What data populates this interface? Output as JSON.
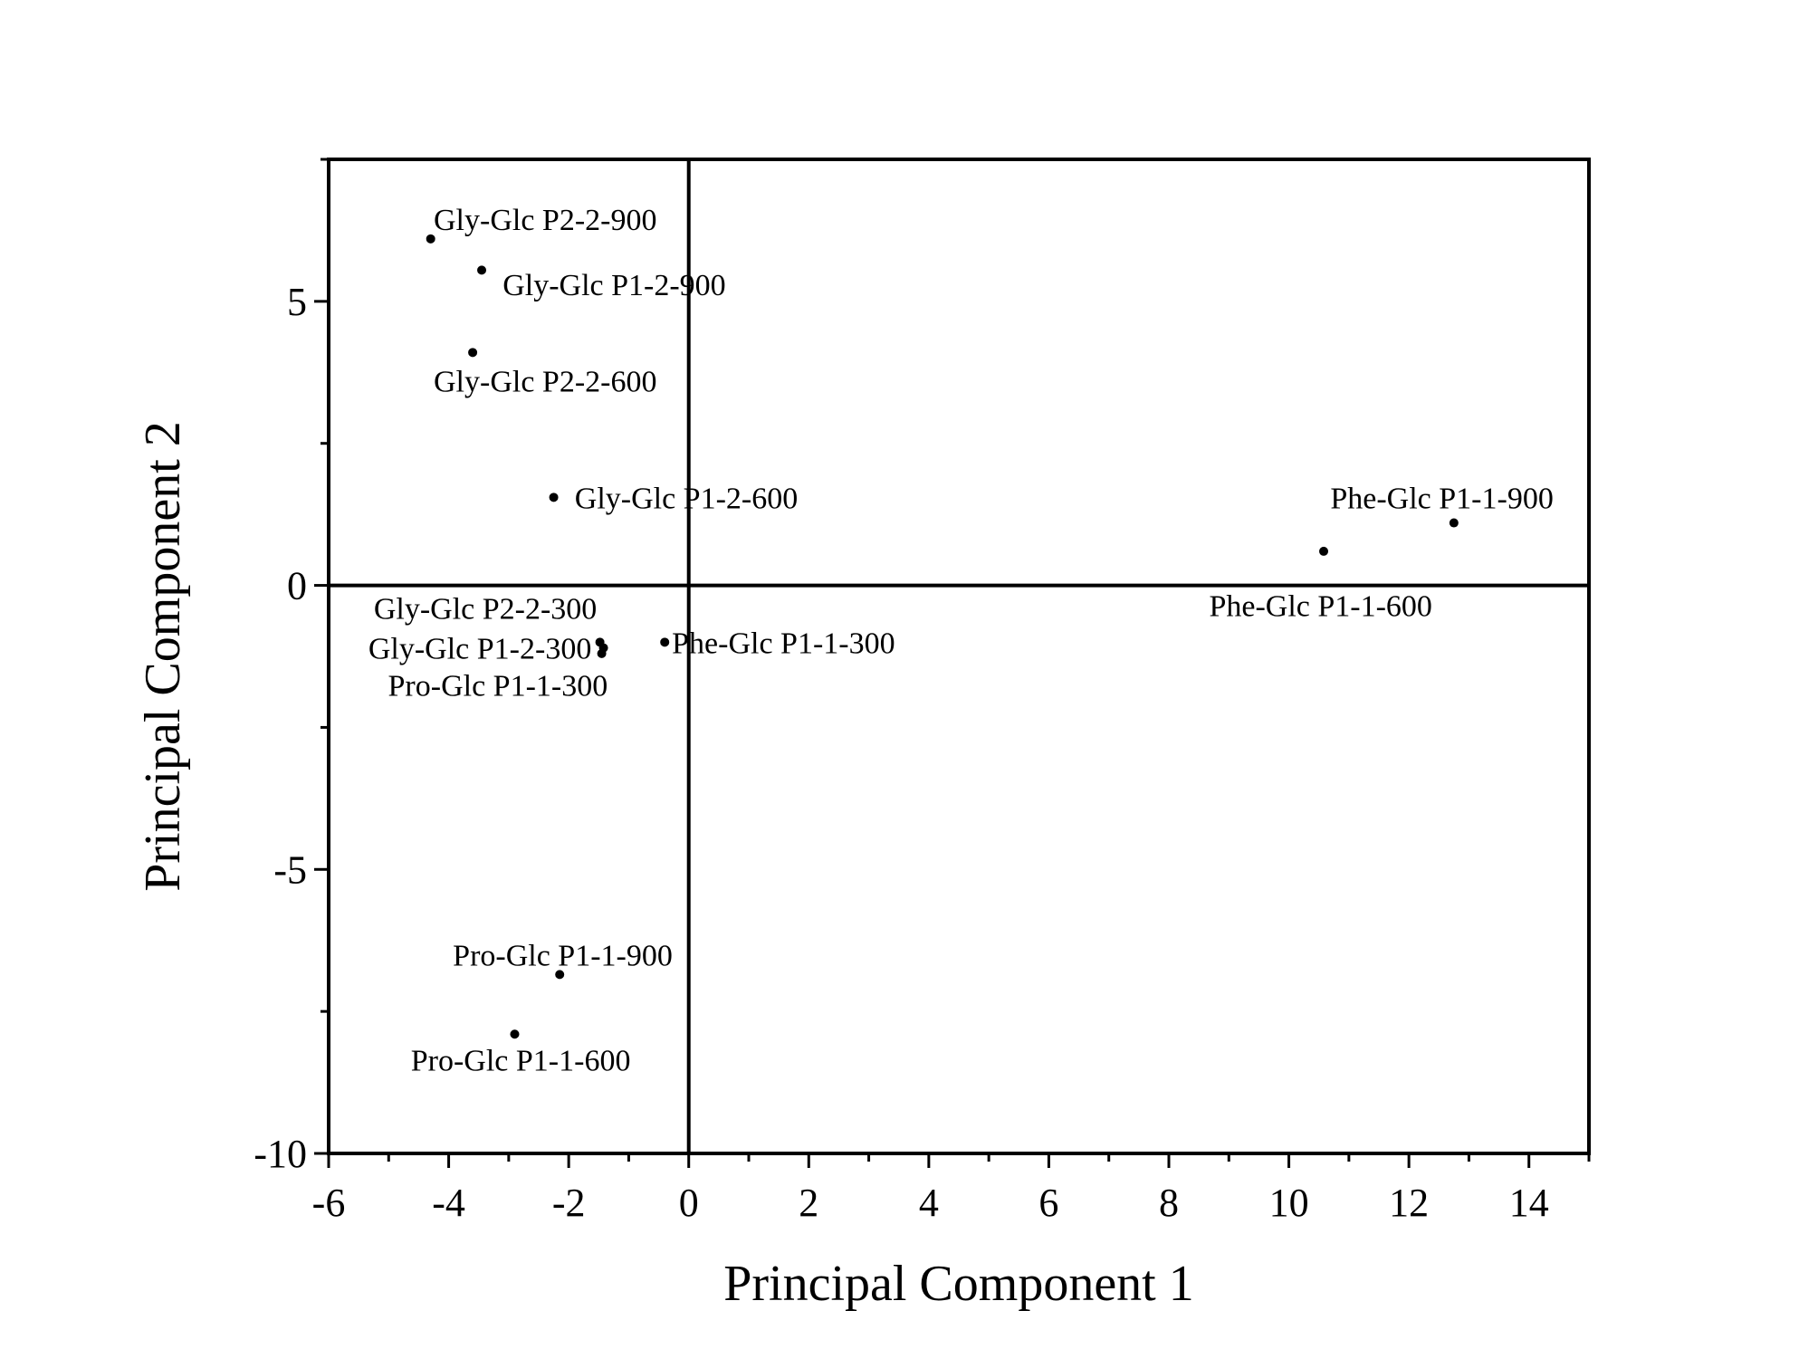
{
  "chart_data": {
    "type": "scatter",
    "title": "",
    "xlabel": "Principal Component 1",
    "ylabel": "Principal Component 2",
    "xlim": [
      -6,
      15
    ],
    "ylim": [
      -10,
      7.5
    ],
    "x_ticks": [
      -6,
      -4,
      -2,
      0,
      2,
      4,
      6,
      8,
      10,
      12,
      14
    ],
    "x_tick_labels": [
      "-6",
      "-4",
      "-2",
      "0",
      "2",
      "4",
      "6",
      "8",
      "10",
      "12",
      "14"
    ],
    "y_ticks": [
      -10,
      -5,
      0,
      5
    ],
    "y_tick_labels": [
      "-10",
      "-5",
      "0",
      "5"
    ],
    "reference_lines": {
      "x": 0,
      "y": 0
    },
    "grid": false,
    "legend": "none",
    "points": [
      {
        "label": "Gly-Glc P2-2-900",
        "x": -4.3,
        "y": 6.1,
        "label_anchor": "start",
        "label_dx": 0.05,
        "label_dy": 0.35
      },
      {
        "label": "Gly-Glc P1-2-900",
        "x": -3.45,
        "y": 5.55,
        "label_anchor": "start",
        "label_dx": 0.35,
        "label_dy": -0.25
      },
      {
        "label": "Gly-Glc P2-2-600",
        "x": -3.6,
        "y": 4.1,
        "label_anchor": "start",
        "label_dx": -0.65,
        "label_dy": -0.5
      },
      {
        "label": "Gly-Glc P1-2-600",
        "x": -2.25,
        "y": 1.55,
        "label_anchor": "start",
        "label_dx": 0.35,
        "label_dy": 0.0
      },
      {
        "label": "Gly-Glc P2-2-300",
        "x": -1.48,
        "y": -1.0,
        "label_anchor": "end",
        "label_dx": -0.05,
        "label_dy": 0.6
      },
      {
        "label": "Gly-Glc P1-2-300",
        "x": -1.42,
        "y": -1.1,
        "label_anchor": "end",
        "label_dx": -0.2,
        "label_dy": 0.0
      },
      {
        "label": "Pro-Glc P1-1-300",
        "x": -1.45,
        "y": -1.2,
        "label_anchor": "end",
        "label_dx": 0.1,
        "label_dy": -0.55
      },
      {
        "label": "Phe-Glc P1-1-300",
        "x": -0.4,
        "y": -1.0,
        "label_anchor": "start",
        "label_dx": 0.12,
        "label_dy": 0.0
      },
      {
        "label": "Phe-Glc P1-1-900",
        "x": 12.75,
        "y": 1.1,
        "label_anchor": "middle",
        "label_dx": -0.2,
        "label_dy": 0.45
      },
      {
        "label": "Phe-Glc P1-1-600",
        "x": 10.58,
        "y": 0.6,
        "label_anchor": "middle",
        "label_dx": -0.05,
        "label_dy": -0.95
      },
      {
        "label": "Pro-Glc P1-1-900",
        "x": -2.15,
        "y": -6.85,
        "label_anchor": "middle",
        "label_dx": 0.05,
        "label_dy": 0.35
      },
      {
        "label": "Pro-Glc P1-1-600",
        "x": -2.9,
        "y": -7.9,
        "label_anchor": "middle",
        "label_dx": 0.1,
        "label_dy": -0.45
      }
    ]
  }
}
